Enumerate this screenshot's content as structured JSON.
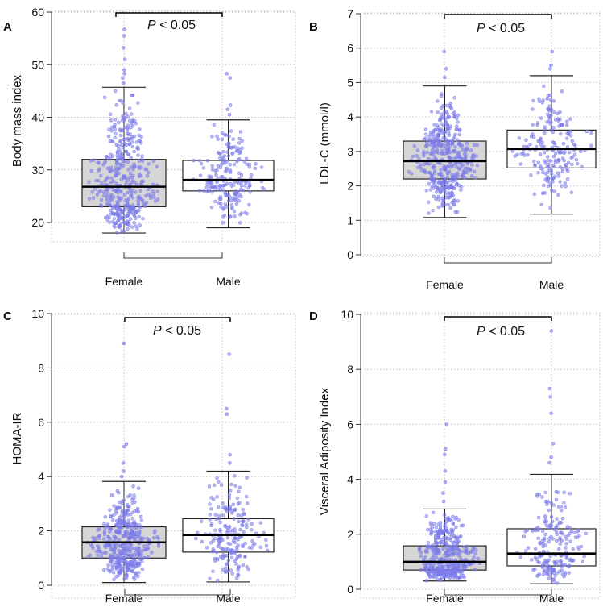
{
  "colors": {
    "female_box": "#d6d6d6",
    "male_box": "#ffffff",
    "points": "#7b7bea",
    "grid": "#c4c4c4",
    "axis": "#333333"
  },
  "chart_data": [
    {
      "type": "box",
      "panel": "A",
      "ylabel": "Body mass index",
      "ylim": [
        17,
        60
      ],
      "yticks": [
        20,
        30,
        40,
        50,
        60
      ],
      "categories": [
        "Female",
        "Male"
      ],
      "significance": {
        "p_prefix": "P",
        "p_rest": " < 0.05"
      },
      "boxes": [
        {
          "name": "Female",
          "whisker_low": 18,
          "q1": 23,
          "median": 26.8,
          "q3": 32,
          "whisker_high": 45.7,
          "outliers": [
            46.5,
            47.5,
            48.3,
            49,
            51,
            53.2,
            55.5,
            56.7
          ]
        },
        {
          "name": "Male",
          "whisker_low": 19,
          "q1": 26,
          "median": 28.1,
          "q3": 31.8,
          "whisker_high": 39.5,
          "outliers": [
            40.5,
            41.5,
            42.3,
            47.5,
            48.3
          ]
        }
      ]
    },
    {
      "type": "box",
      "panel": "B",
      "ylabel": "LDL-C (mmol/l)",
      "ylim": [
        0,
        7
      ],
      "yticks": [
        0,
        1,
        2,
        3,
        4,
        5,
        6,
        7
      ],
      "categories": [
        "Female",
        "Male"
      ],
      "significance": {
        "p_prefix": "P",
        "p_rest": " < 0.05"
      },
      "boxes": [
        {
          "name": "Female",
          "whisker_low": 1.08,
          "q1": 2.2,
          "median": 2.72,
          "q3": 3.3,
          "whisker_high": 4.9,
          "outliers": [
            5.15,
            5.4,
            5.9
          ]
        },
        {
          "name": "Male",
          "whisker_low": 1.18,
          "q1": 2.52,
          "median": 3.07,
          "q3": 3.62,
          "whisker_high": 5.2,
          "outliers": [
            5.4,
            5.5,
            5.9
          ]
        }
      ]
    },
    {
      "type": "box",
      "panel": "C",
      "ylabel": "HOMA-IR",
      "ylim": [
        0,
        10
      ],
      "yticks": [
        0,
        2,
        4,
        6,
        8,
        10
      ],
      "categories": [
        "Female",
        "Male"
      ],
      "significance": {
        "p_prefix": "P",
        "p_rest": " < 0.05"
      },
      "boxes": [
        {
          "name": "Female",
          "whisker_low": 0.1,
          "q1": 1.0,
          "median": 1.58,
          "q3": 2.15,
          "whisker_high": 3.82,
          "outliers": [
            4.0,
            4.2,
            4.5,
            5.1,
            5.2,
            8.9
          ]
        },
        {
          "name": "Male",
          "whisker_low": 0.12,
          "q1": 1.22,
          "median": 1.85,
          "q3": 2.45,
          "whisker_high": 4.2,
          "outliers": [
            4.5,
            4.8,
            6.3,
            6.5,
            8.5
          ]
        }
      ]
    },
    {
      "type": "box",
      "panel": "D",
      "ylabel": "Visceral Adiposity Index",
      "ylim": [
        0,
        10
      ],
      "yticks": [
        0,
        2,
        4,
        6,
        8,
        10
      ],
      "categories": [
        "Female",
        "Male"
      ],
      "significance": {
        "p_prefix": "P",
        "p_rest": " < 0.05"
      },
      "boxes": [
        {
          "name": "Female",
          "whisker_low": 0.3,
          "q1": 0.7,
          "median": 1.0,
          "q3": 1.58,
          "whisker_high": 2.92,
          "outliers": [
            3.2,
            3.5,
            3.9,
            4.3,
            4.9,
            5.1,
            6.0
          ]
        },
        {
          "name": "Male",
          "whisker_low": 0.2,
          "q1": 0.85,
          "median": 1.3,
          "q3": 2.2,
          "whisker_high": 4.18,
          "outliers": [
            4.6,
            4.8,
            5.3,
            6.4,
            7.0,
            7.3,
            9.4
          ]
        }
      ]
    }
  ]
}
